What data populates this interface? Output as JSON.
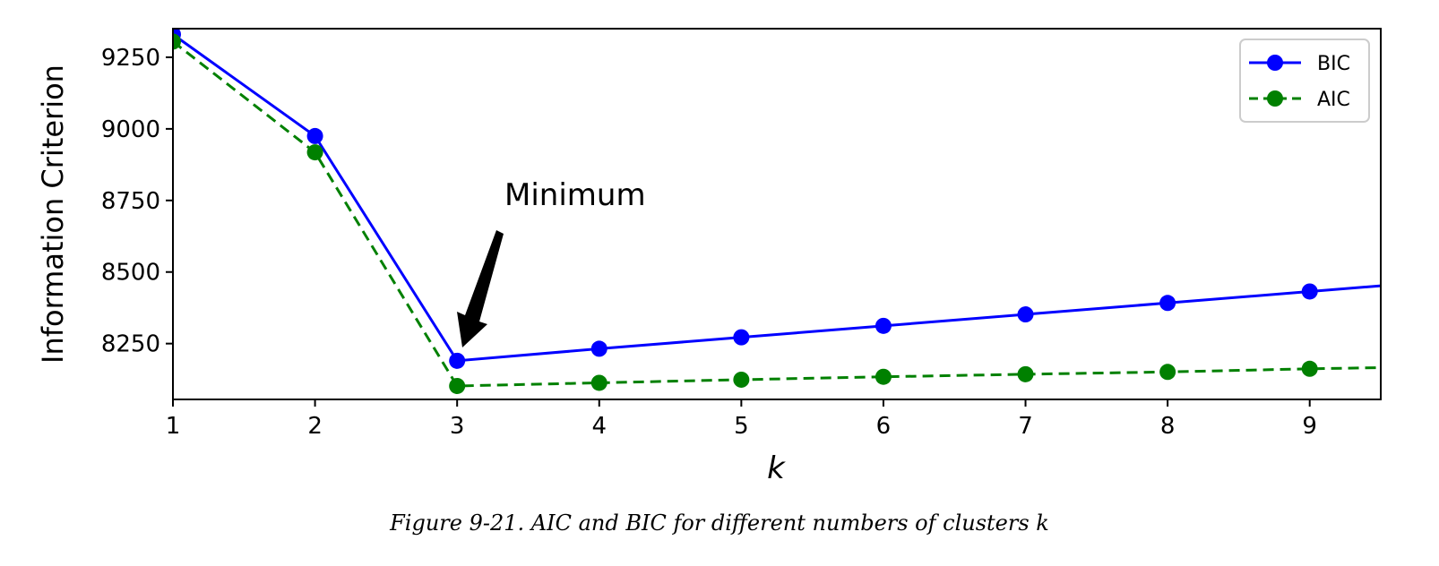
{
  "chart_data": {
    "type": "line",
    "title": "",
    "xlabel": "k",
    "ylabel": "Information Criterion",
    "xlim": [
      1,
      9.5
    ],
    "ylim": [
      8055,
      9350
    ],
    "x_ticks": [
      1,
      2,
      3,
      4,
      5,
      6,
      7,
      8,
      9
    ],
    "y_ticks": [
      8250,
      8500,
      8750,
      9000,
      9250
    ],
    "x": [
      1,
      2,
      3,
      4,
      5,
      6,
      7,
      8,
      9,
      10
    ],
    "series": [
      {
        "name": "BIC",
        "color": "#0000ff",
        "linestyle": "solid",
        "values": [
          9330,
          8975,
          8190,
          8232,
          8272,
          8312,
          8352,
          8392,
          8432,
          8472
        ]
      },
      {
        "name": "AIC",
        "color": "#008000",
        "linestyle": "dashed",
        "values": [
          9305,
          8918,
          8102,
          8113,
          8124,
          8134,
          8143,
          8151,
          8162,
          8170
        ]
      }
    ],
    "legend_position": "top-right",
    "grid": false,
    "annotations": [
      {
        "text": "Minimum",
        "points_to": {
          "x": 3,
          "y": 8190
        }
      }
    ]
  },
  "caption": "Figure 9-21. AIC and BIC for different numbers of clusters k"
}
